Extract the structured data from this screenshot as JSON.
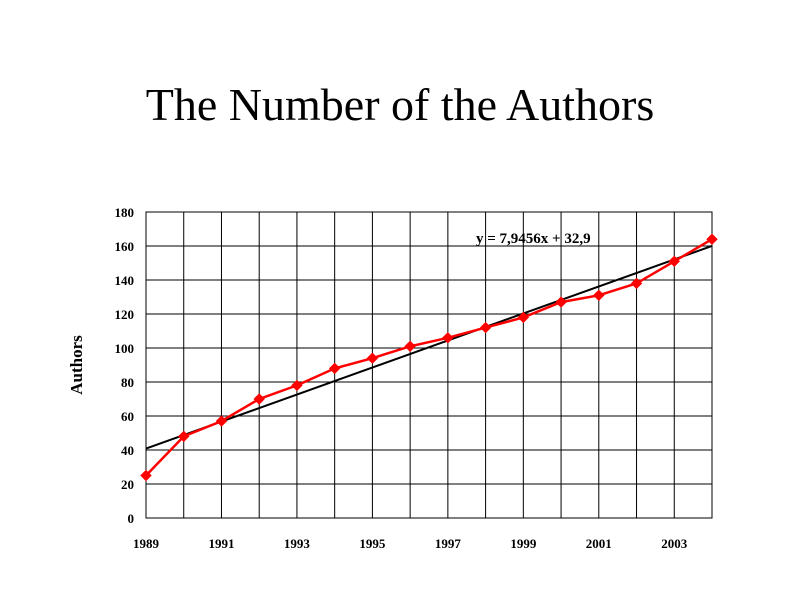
{
  "slide": {
    "title": "The Number of the Authors"
  },
  "chart_data": {
    "type": "line",
    "title": "The Number of the Authors",
    "xlabel": "",
    "ylabel": "Authors",
    "x": [
      1989,
      1990,
      1991,
      1992,
      1993,
      1994,
      1995,
      1996,
      1997,
      1998,
      1999,
      2000,
      2001,
      2002,
      2003,
      2004
    ],
    "xticks": [
      "1989",
      "1991",
      "1993",
      "1995",
      "1997",
      "1999",
      "2001",
      "2003"
    ],
    "ylim": [
      0,
      180
    ],
    "yticks": [
      "0",
      "20",
      "40",
      "60",
      "80",
      "100",
      "120",
      "140",
      "160",
      "180"
    ],
    "grid": true,
    "series": [
      {
        "color": "#ff0000",
        "marker": "diamond",
        "values": [
          25,
          48,
          57,
          70,
          78,
          88,
          94,
          101,
          106,
          112,
          118,
          127,
          131,
          138,
          151,
          164
        ]
      }
    ],
    "trendline": {
      "color": "#000000",
      "equation": "y = 7,9456x + 32,9",
      "slope": 7.9456,
      "intercept": 32.9
    }
  }
}
